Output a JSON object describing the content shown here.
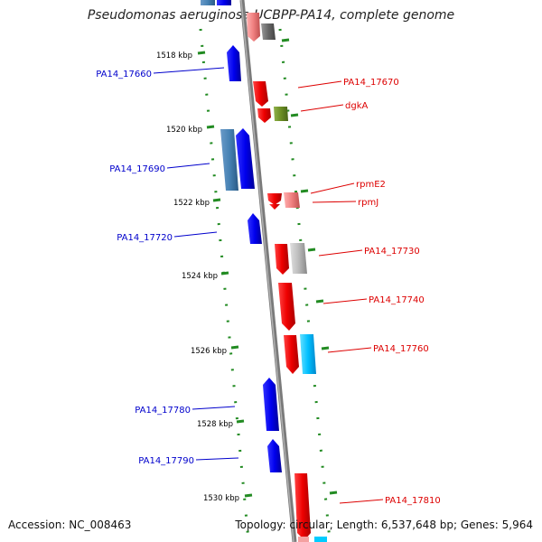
{
  "title": "Pseudomonas aeruginosa UCBPP-PA14, complete genome",
  "footer": {
    "accession": "Accession: NC_008463",
    "summary": "Topology: circular; Length: 6,537,648 bp; Genes: 5,964"
  },
  "ruler_labels": [
    "1518 kbp",
    "1520 kbp",
    "1522 kbp",
    "1524 kbp",
    "1526 kbp",
    "1528 kbp",
    "1530 kbp"
  ],
  "gene_labels_left": [
    "PA14_17660",
    "PA14_17690",
    "PA14_17720",
    "PA14_17780",
    "PA14_17790"
  ],
  "gene_labels_right": [
    "PA14_17670",
    "dgkA",
    "rpmE2",
    "rpmJ",
    "PA14_17730",
    "PA14_17740",
    "PA14_17760",
    "PA14_17810"
  ],
  "colors": {
    "forward_gene": "#0000ee",
    "reverse_gene": "#ee0000",
    "backbone": "#808080",
    "tick": "#228b22",
    "left_label": "#0000cc",
    "right_label": "#dd0000"
  }
}
